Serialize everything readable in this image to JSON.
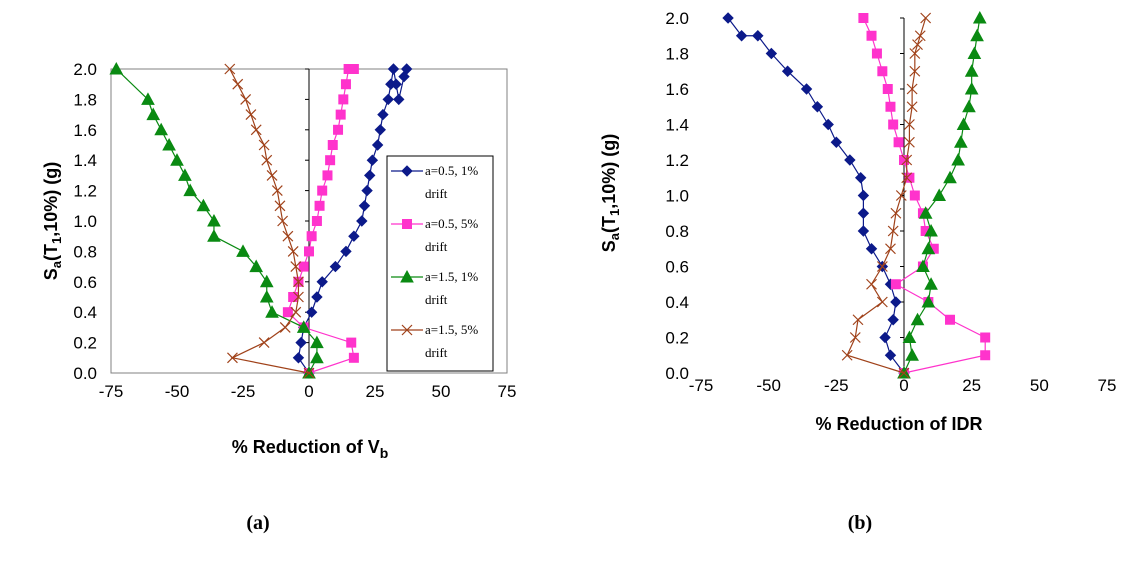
{
  "colors": {
    "a05_1": "#0c1a8a",
    "a05_5": "#ff33cc",
    "a15_1": "#0a8a12",
    "a15_5": "#a0421a"
  },
  "chart_data": [
    {
      "panel_label": "(a)",
      "type": "line",
      "xlabel": "% Reduction of V",
      "xlabel_sub": "b",
      "ylabel": "S",
      "ylabel_sub_a": "a",
      "ylabel_mid": "(T",
      "ylabel_sub_1": "1",
      "ylabel_tail": ",10%) (g)",
      "xlim": [
        -75,
        75
      ],
      "ylim": [
        0,
        2.0
      ],
      "xticks": [
        "-75",
        "-50",
        "-25",
        "0",
        "25",
        "50",
        "75"
      ],
      "yticks": [
        "0.0",
        "0.2",
        "0.4",
        "0.6",
        "0.8",
        "1.0",
        "1.2",
        "1.4",
        "1.6",
        "1.8",
        "2.0"
      ],
      "legend": {
        "position": "right",
        "entries": [
          {
            "line1": "a=0.5, 1%",
            "line2": "drift"
          },
          {
            "line1": "a=0.5, 5%",
            "line2": "drift"
          },
          {
            "line1": "a=1.5, 1%",
            "line2": "drift"
          },
          {
            "line1": "a=1.5, 5%",
            "line2": "drift"
          }
        ]
      },
      "series": [
        {
          "name": "a=0.5, 1% drift",
          "marker": "diamond",
          "x": [
            0,
            -4,
            -3,
            -2,
            1,
            3,
            5,
            10,
            14,
            17,
            20,
            21,
            22,
            23,
            24,
            26,
            27,
            28,
            30,
            31,
            32,
            33,
            34,
            36,
            37
          ],
          "y": [
            0,
            0.1,
            0.2,
            0.3,
            0.4,
            0.5,
            0.6,
            0.7,
            0.8,
            0.9,
            1.0,
            1.1,
            1.2,
            1.3,
            1.4,
            1.5,
            1.6,
            1.7,
            1.8,
            1.9,
            2.0,
            1.9,
            1.8,
            1.95,
            2.0
          ]
        },
        {
          "name": "a=0.5, 5% drift",
          "marker": "square",
          "x": [
            0,
            17,
            16,
            -2,
            -8,
            -6,
            -4,
            -2,
            0,
            1,
            3,
            4,
            5,
            7,
            8,
            9,
            11,
            12,
            13,
            14,
            15,
            16,
            17
          ],
          "y": [
            0,
            0.1,
            0.2,
            0.3,
            0.4,
            0.5,
            0.6,
            0.7,
            0.8,
            0.9,
            1.0,
            1.1,
            1.2,
            1.3,
            1.4,
            1.5,
            1.6,
            1.7,
            1.8,
            1.9,
            2.0,
            2.0,
            2.0
          ]
        },
        {
          "name": "a=1.5, 1% drift",
          "marker": "triangle",
          "x": [
            0,
            3,
            3,
            -2,
            -14,
            -16,
            -16,
            -20,
            -25,
            -36,
            -36,
            -40,
            -45,
            -47,
            -50,
            -53,
            -56,
            -59,
            -61,
            -73
          ],
          "y": [
            0,
            0.1,
            0.2,
            0.3,
            0.4,
            0.5,
            0.6,
            0.7,
            0.8,
            0.9,
            1.0,
            1.1,
            1.2,
            1.3,
            1.4,
            1.5,
            1.6,
            1.7,
            1.8,
            2.0
          ]
        },
        {
          "name": "a=1.5, 5% drift",
          "marker": "x",
          "x": [
            0,
            -29,
            -17,
            -9,
            -5,
            -4,
            -4,
            -5,
            -6,
            -8,
            -10,
            -11,
            -12,
            -14,
            -16,
            -17,
            -20,
            -22,
            -24,
            -27,
            -30
          ],
          "y": [
            0,
            0.1,
            0.2,
            0.3,
            0.4,
            0.5,
            0.6,
            0.7,
            0.8,
            0.9,
            1.0,
            1.1,
            1.2,
            1.3,
            1.4,
            1.5,
            1.6,
            1.7,
            1.8,
            1.9,
            2.0
          ]
        }
      ]
    },
    {
      "panel_label": "(b)",
      "type": "line",
      "xlabel": "% Reduction of IDR",
      "ylabel": "S",
      "ylabel_sub_a": "a",
      "ylabel_mid": "(T",
      "ylabel_sub_1": "1",
      "ylabel_tail": ",10%) (g)",
      "xlim": [
        -75,
        75
      ],
      "ylim": [
        0,
        2.0
      ],
      "xticks": [
        "-75",
        "-50",
        "-25",
        "0",
        "25",
        "50",
        "75"
      ],
      "yticks": [
        "0.0",
        "0.2",
        "0.4",
        "0.6",
        "0.8",
        "1.0",
        "1.2",
        "1.4",
        "1.6",
        "1.8",
        "2.0"
      ],
      "series": [
        {
          "name": "a=0.5, 1% drift",
          "marker": "diamond",
          "x": [
            0,
            -5,
            -7,
            -4,
            -3,
            -5,
            -8,
            -12,
            -15,
            -15,
            -15,
            -16,
            -20,
            -25,
            -28,
            -32,
            -36,
            -43,
            -49,
            -54,
            -60,
            -65
          ],
          "y": [
            0,
            0.1,
            0.2,
            0.3,
            0.4,
            0.5,
            0.6,
            0.7,
            0.8,
            0.9,
            1.0,
            1.1,
            1.2,
            1.3,
            1.4,
            1.5,
            1.6,
            1.7,
            1.8,
            1.9,
            1.9,
            2.0
          ]
        },
        {
          "name": "a=0.5, 5% drift",
          "marker": "square",
          "x": [
            0,
            30,
            30,
            17,
            9,
            -3,
            7,
            11,
            8,
            7,
            4,
            2,
            0,
            -2,
            -4,
            -5,
            -6,
            -8,
            -10,
            -12,
            -15
          ],
          "y": [
            0,
            0.1,
            0.2,
            0.3,
            0.4,
            0.5,
            0.6,
            0.7,
            0.8,
            0.9,
            1.0,
            1.1,
            1.2,
            1.3,
            1.4,
            1.5,
            1.6,
            1.7,
            1.8,
            1.9,
            2.0
          ]
        },
        {
          "name": "a=1.5, 1% drift",
          "marker": "triangle",
          "x": [
            0,
            3,
            2,
            5,
            9,
            10,
            7,
            9,
            10,
            8,
            13,
            17,
            20,
            21,
            22,
            24,
            25,
            25,
            26,
            27,
            28
          ],
          "y": [
            0,
            0.1,
            0.2,
            0.3,
            0.4,
            0.5,
            0.6,
            0.7,
            0.8,
            0.9,
            1.0,
            1.1,
            1.2,
            1.3,
            1.4,
            1.5,
            1.6,
            1.7,
            1.8,
            1.9,
            2.0
          ]
        },
        {
          "name": "a=1.5, 5% drift",
          "marker": "x",
          "x": [
            0,
            -21,
            -18,
            -17,
            -8,
            -12,
            -8,
            -5,
            -4,
            -3,
            -1,
            1,
            1,
            2,
            2,
            3,
            3,
            4,
            4,
            5,
            6,
            8
          ],
          "y": [
            0,
            0.1,
            0.2,
            0.3,
            0.4,
            0.5,
            0.6,
            0.7,
            0.8,
            0.9,
            1.0,
            1.1,
            1.2,
            1.3,
            1.4,
            1.5,
            1.6,
            1.7,
            1.8,
            1.85,
            1.9,
            2.0
          ]
        }
      ]
    }
  ]
}
